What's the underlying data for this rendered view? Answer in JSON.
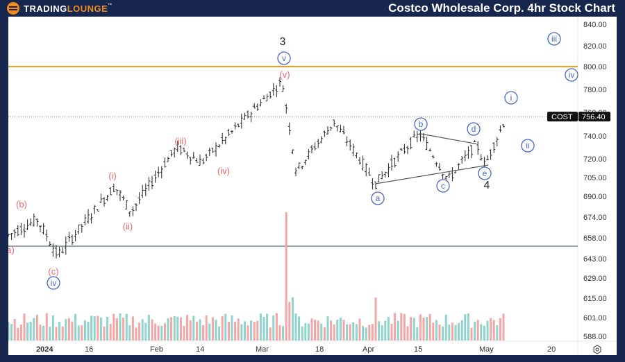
{
  "header": {
    "logo_part1": "Trading",
    "logo_part2": "Lounge",
    "logo_tm": "™",
    "title": "Costco Wholesale Corp. 4hr Stock Chart"
  },
  "price_tag": {
    "symbol": "COST",
    "price": "756.40"
  },
  "colors": {
    "frame": "#17264d",
    "accent_orange": "#f59e1c",
    "wave_red": "#f0666a",
    "wave_blue": "#4466cc",
    "vol_up": "#8fd3cb",
    "vol_down": "#f4a6a6",
    "support_line": "#9aa0aa"
  },
  "chart_data": {
    "type": "ohlc_bar",
    "title": "Costco Wholesale Corp. 4hr Stock Chart",
    "symbol": "COST",
    "last_price": 756.4,
    "y_axis_ticks": [
      840,
      820,
      800,
      780,
      760,
      740,
      720,
      705,
      690,
      674,
      658,
      643,
      629,
      615,
      601,
      588
    ],
    "y_axis_labels": [
      "840.00",
      "820.00",
      "800.00",
      "780.00",
      "760.00",
      "740.00",
      "720.00",
      "705.00",
      "690.00",
      "674.00",
      "658.00",
      "643.00",
      "629.00",
      "615.00",
      "601.00",
      "588.00"
    ],
    "x_axis_labels": [
      "2024",
      "16",
      "Feb",
      "14",
      "Mar",
      "18",
      "Apr",
      "15",
      "May",
      "20"
    ],
    "horizontal_lines": [
      {
        "price": 800,
        "color": "#f59e1c",
        "label": "resistance"
      },
      {
        "price": 652,
        "color": "#9aa0aa",
        "label": "support"
      },
      {
        "price": 756.4,
        "style": "dotted",
        "label": "last price"
      }
    ],
    "approx_path": [
      {
        "date": "2024-01-01",
        "price": 660
      },
      {
        "date": "2024-01-03",
        "price": 672,
        "label": "(b)"
      },
      {
        "date": "2024-01-08",
        "price": 645,
        "label": "(c) / iv"
      },
      {
        "date": "2024-01-22",
        "price": 698,
        "label": "(i)"
      },
      {
        "date": "2024-01-26",
        "price": 678,
        "label": "(ii)"
      },
      {
        "date": "2024-02-07",
        "price": 730,
        "label": "(iii)"
      },
      {
        "date": "2024-02-14",
        "price": 717,
        "label": "(iv)"
      },
      {
        "date": "2024-03-07",
        "price": 787,
        "label": "(v) / v / 3"
      },
      {
        "date": "2024-03-11",
        "price": 710
      },
      {
        "date": "2024-03-22",
        "price": 752
      },
      {
        "date": "2024-04-03",
        "price": 700,
        "label": "a"
      },
      {
        "date": "2024-04-15",
        "price": 742,
        "label": "b"
      },
      {
        "date": "2024-04-22",
        "price": 703,
        "label": "c"
      },
      {
        "date": "2024-04-29",
        "price": 733,
        "label": "d"
      },
      {
        "date": "2024-05-01",
        "price": 714,
        "label": "e / 4"
      },
      {
        "date": "2024-05-07",
        "price": 756.4
      }
    ],
    "wave_labels": {
      "red": [
        "(b)",
        "a)",
        "(c)",
        "(i)",
        "(ii)",
        "(iii)",
        "(iv)",
        "(v)"
      ],
      "dark": [
        "3",
        "4"
      ],
      "blue_circled": [
        "iv",
        "v",
        "a",
        "b",
        "c",
        "d",
        "e",
        "i",
        "ii",
        "iii",
        "iv"
      ]
    },
    "triangle": {
      "upper": [
        {
          "date": "b",
          "price": 742
        },
        {
          "date": "d",
          "price": 733
        }
      ],
      "lower": [
        {
          "date": "a",
          "price": 700
        },
        {
          "date": "e",
          "price": 714
        }
      ]
    },
    "volume": {
      "peak_bar_date": "2024-03-08",
      "note": "spike at wave 3 top reversal"
    }
  }
}
